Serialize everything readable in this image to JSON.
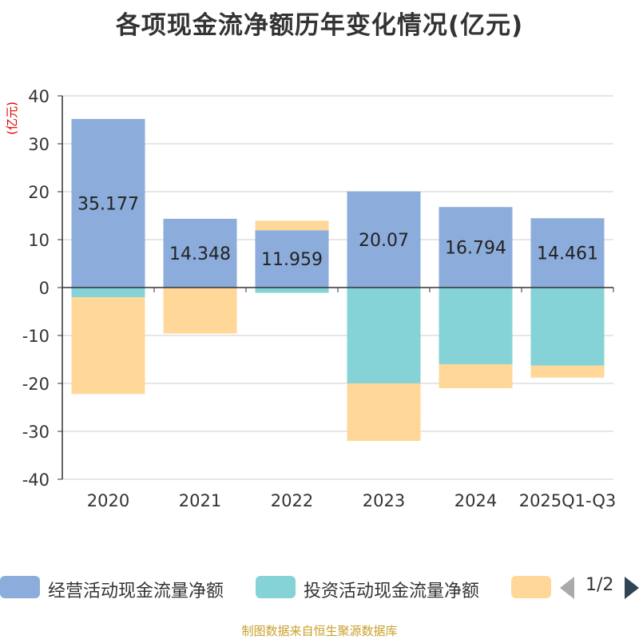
{
  "chart_data": {
    "type": "bar",
    "stacked": true,
    "title": "各项现金流净额历年变化情况(亿元)",
    "ylabel": "(亿元)",
    "ylim": [
      -40,
      40
    ],
    "yticks": [
      40,
      30,
      20,
      10,
      0,
      -10,
      -20,
      -30,
      -40
    ],
    "categories": [
      "2020",
      "2021",
      "2022",
      "2023",
      "2024",
      "2025Q1-Q3"
    ],
    "series": [
      {
        "name": "经营活动现金流量净额",
        "color": "#8caddb",
        "values": [
          35.177,
          14.348,
          11.959,
          20.07,
          16.794,
          14.461
        ]
      },
      {
        "name": "投资活动现金流量净额",
        "color": "#85d3d6",
        "values": [
          -2.0,
          0.0,
          -1.1,
          -20.0,
          -16.0,
          -16.3
        ]
      },
      {
        "name": "",
        "color": "#ffd899",
        "values": [
          -20.2,
          -9.6,
          2.0,
          -12.0,
          -5.0,
          -2.5
        ]
      }
    ],
    "data_labels": [
      "35.177",
      "14.348",
      "11.959",
      "20.07",
      "16.794",
      "14.461"
    ]
  },
  "legend": {
    "items": [
      {
        "label": "经营活动现金流量净额",
        "color": "#8caddb"
      },
      {
        "label": "投资活动现金流量净额",
        "color": "#85d3d6"
      },
      {
        "label": "",
        "color": "#ffd899"
      }
    ],
    "page": "1/2"
  },
  "source": "制图数据来自恒生聚源数据库"
}
